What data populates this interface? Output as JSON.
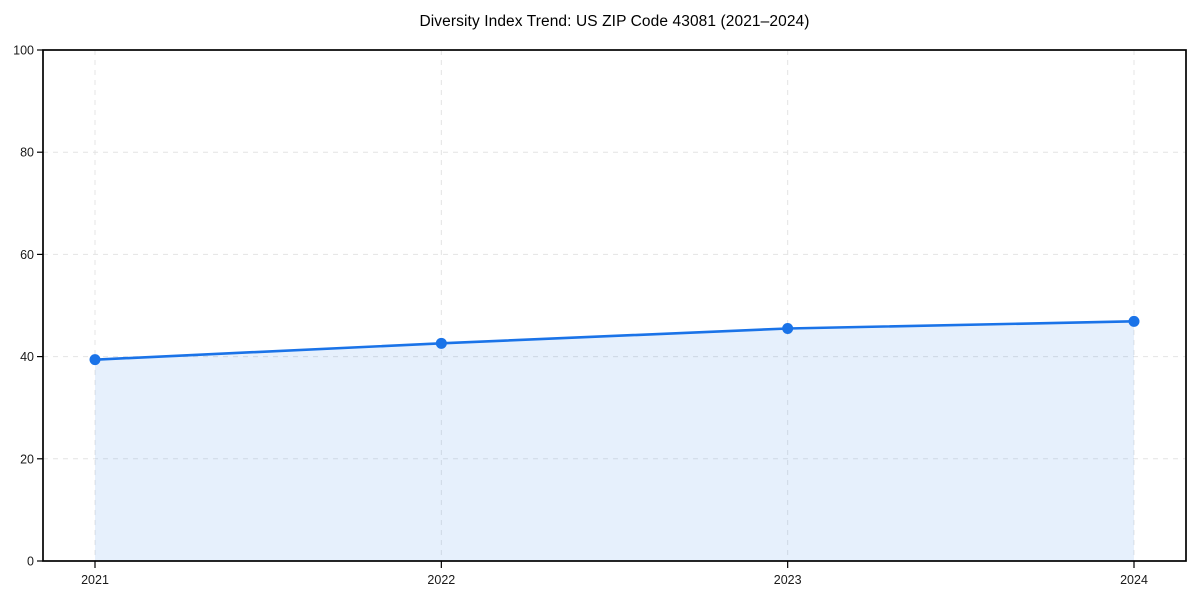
{
  "figure": {
    "background": "#ffffff"
  },
  "chart_data": {
    "type": "area",
    "title": "Diversity Index Trend: US ZIP Code 43081 (2021–2024)",
    "categories": [
      "2021",
      "2022",
      "2023",
      "2024"
    ],
    "values": [
      39.4,
      42.6,
      45.5,
      46.9
    ],
    "xlabel": "",
    "ylabel": "",
    "ylim": [
      0,
      100
    ],
    "yticks": [
      0,
      20,
      40,
      60,
      80,
      100
    ],
    "grid": true,
    "legend_position": "none",
    "colors": {
      "line": "#1a73e8",
      "marker": "#1a73e8",
      "fill_rgba": "26,115,232,0.11",
      "grid": "#e4e4e4",
      "axis": "#000000",
      "tick_text": "#1a1a1a"
    }
  }
}
